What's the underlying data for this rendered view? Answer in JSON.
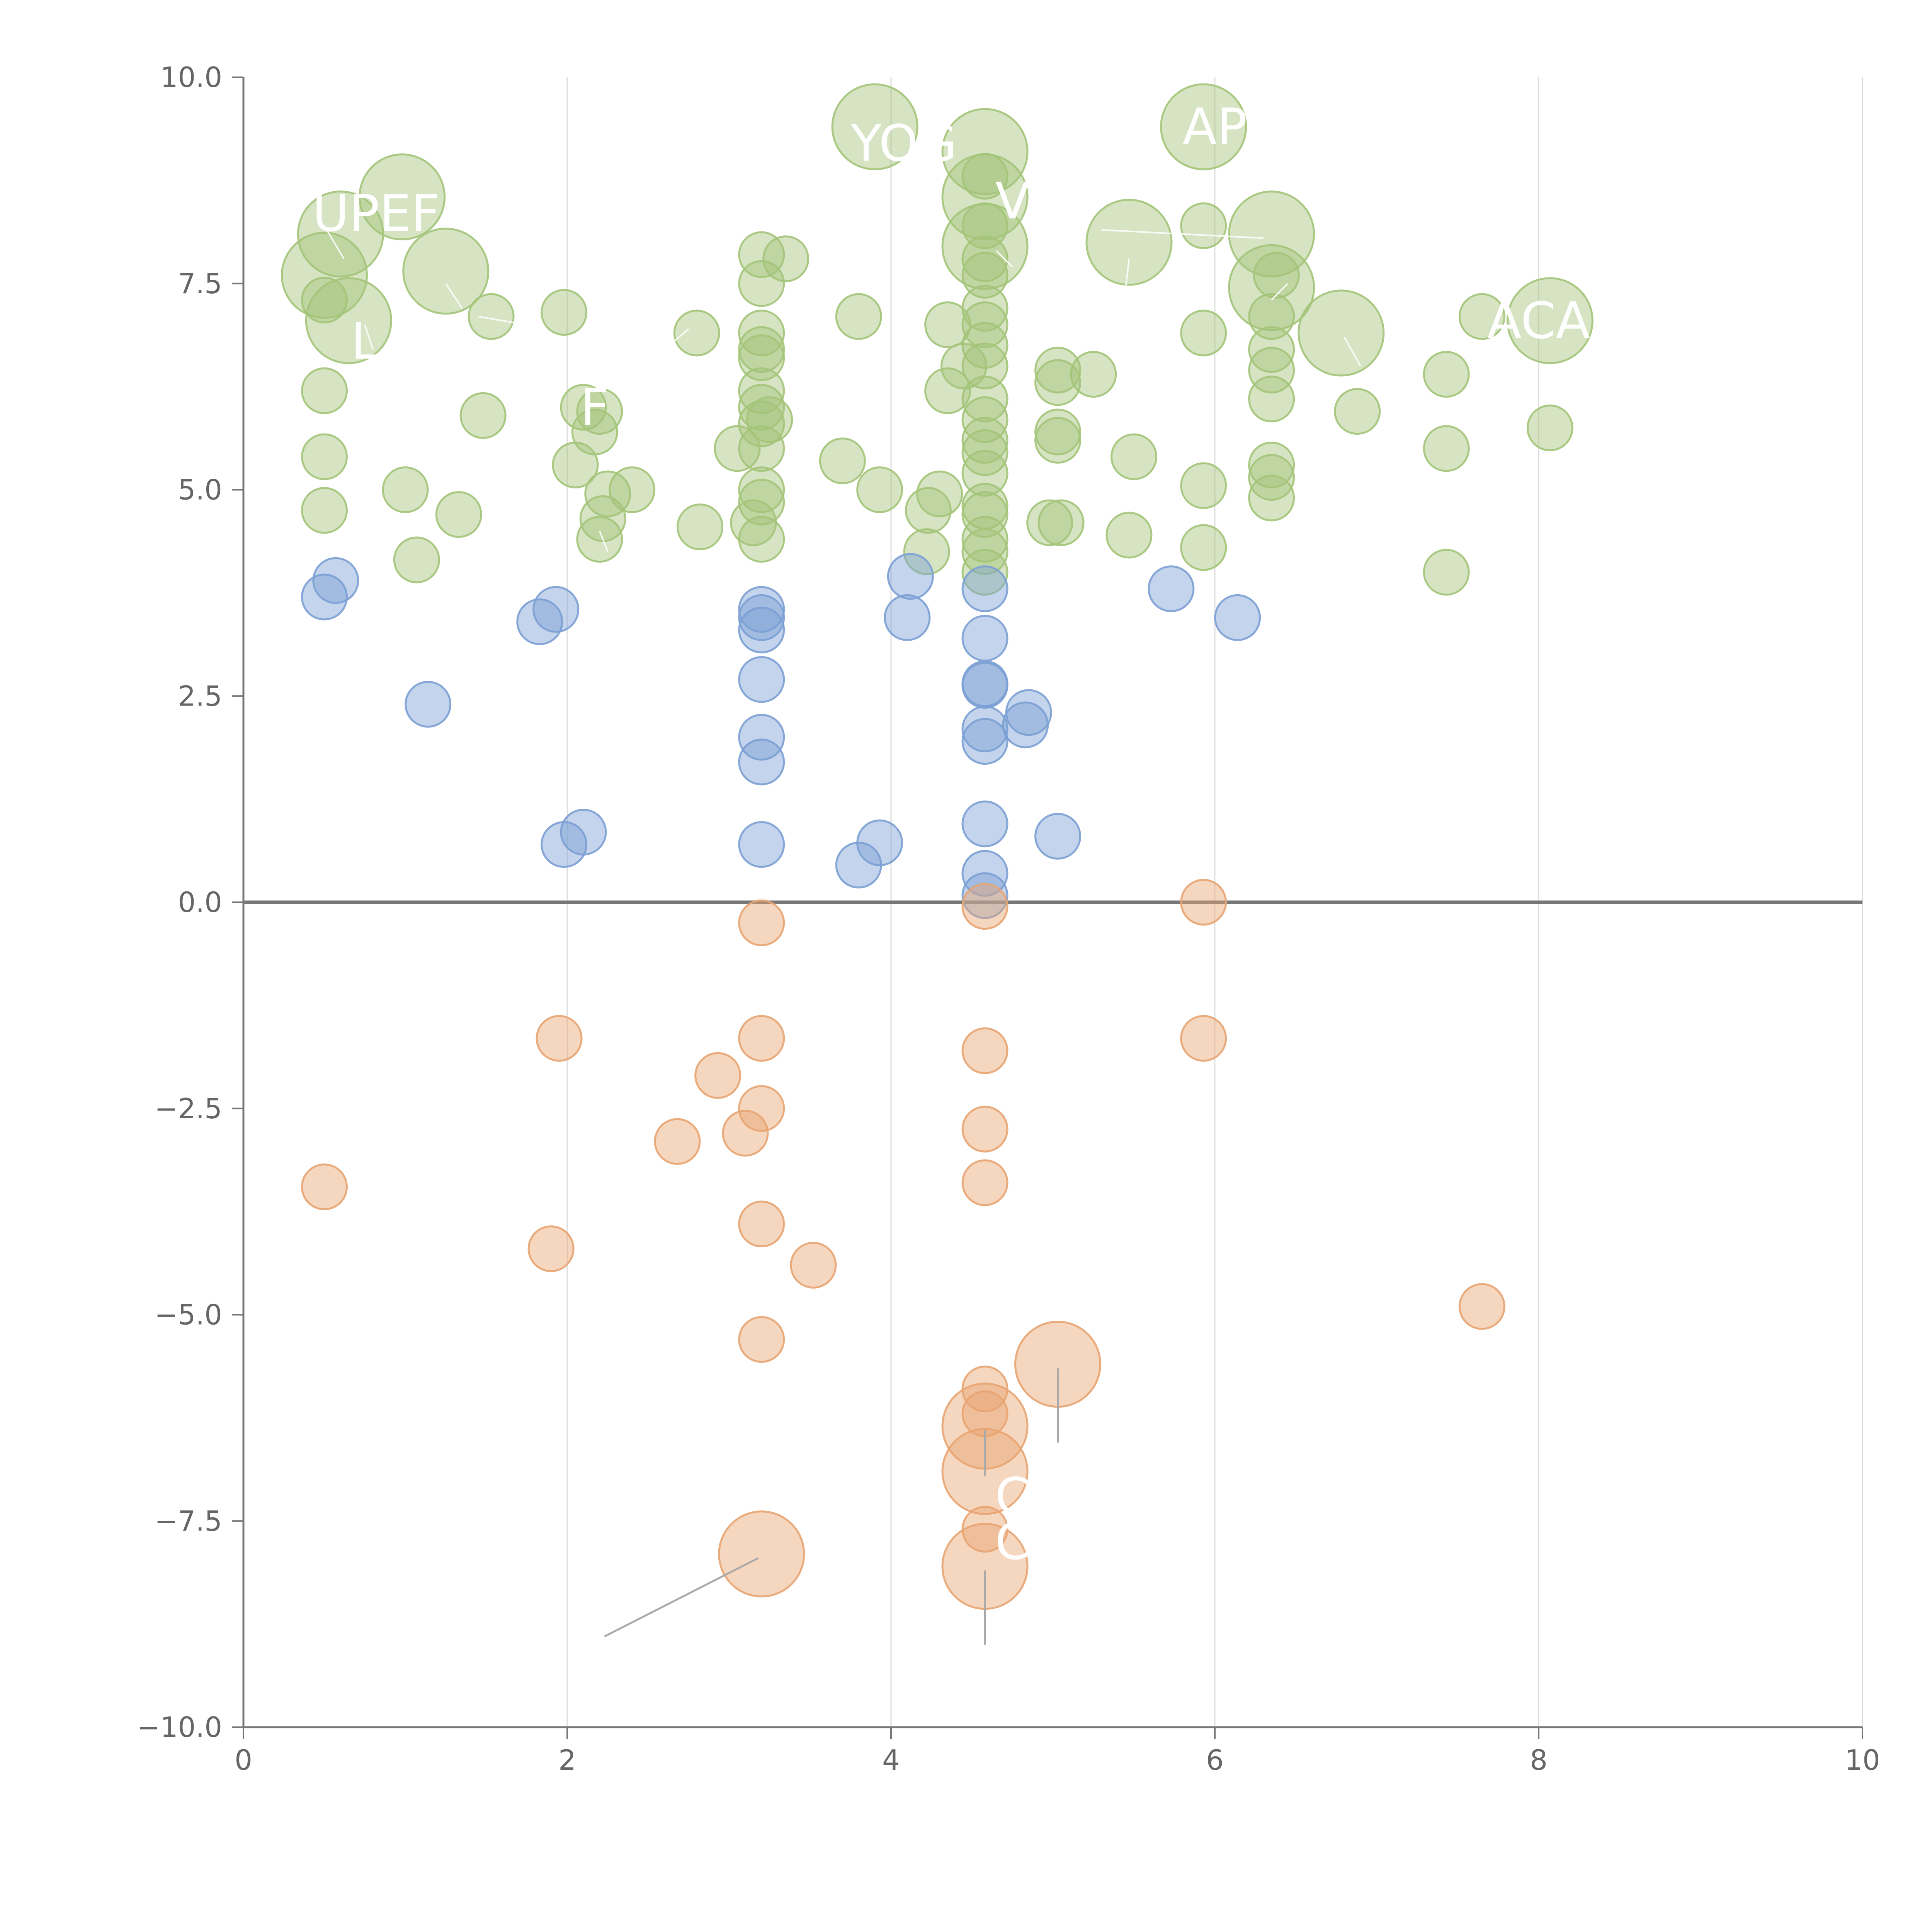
{
  "chart_data": {
    "type": "scatter",
    "title": "",
    "xlabel": "",
    "ylabel": "",
    "xlim": [
      0,
      10
    ],
    "ylim": [
      -10,
      10
    ],
    "x_ticks": [
      "0",
      "2",
      "4",
      "6",
      "8",
      "10"
    ],
    "y_ticks": [
      "−10.0",
      "−7.5",
      "−5.0",
      "−2.5",
      "0.0",
      "2.5",
      "5.0",
      "7.5",
      "10.0"
    ],
    "grid": "vertical",
    "legend": "none",
    "colors": {
      "green": "#a3c479",
      "blue": "#7ba0d4",
      "orange": "#e8a471"
    },
    "groups": [
      {
        "color": "green",
        "points": [
          {
            "x": 0.5,
            "y": 7.6,
            "r": 2
          },
          {
            "x": 0.6,
            "y": 8.1,
            "r": 2
          },
          {
            "x": 0.65,
            "y": 7.05,
            "r": 2
          },
          {
            "x": 0.5,
            "y": 7.3,
            "r": 0
          },
          {
            "x": 0.5,
            "y": 6.2,
            "r": 0
          },
          {
            "x": 0.5,
            "y": 5.4,
            "r": 0
          },
          {
            "x": 0.5,
            "y": 4.75,
            "r": 0
          },
          {
            "x": 0.98,
            "y": 8.55,
            "r": 2
          },
          {
            "x": 1.25,
            "y": 7.65,
            "r": 2
          },
          {
            "x": 1.53,
            "y": 7.1,
            "r": 0
          },
          {
            "x": 1.48,
            "y": 5.9,
            "r": 0
          },
          {
            "x": 1.0,
            "y": 5.0,
            "r": 0
          },
          {
            "x": 1.07,
            "y": 4.15,
            "r": 0
          },
          {
            "x": 1.33,
            "y": 4.7,
            "r": 0
          },
          {
            "x": 1.98,
            "y": 7.15,
            "r": 0
          },
          {
            "x": 2.1,
            "y": 6.0,
            "r": 0
          },
          {
            "x": 2.2,
            "y": 5.95,
            "r": 0
          },
          {
            "x": 2.17,
            "y": 5.7,
            "r": 0
          },
          {
            "x": 2.05,
            "y": 5.3,
            "r": 0
          },
          {
            "x": 2.25,
            "y": 4.95,
            "r": 0
          },
          {
            "x": 2.22,
            "y": 4.65,
            "r": 0
          },
          {
            "x": 2.4,
            "y": 5.0,
            "r": 0
          },
          {
            "x": 2.2,
            "y": 4.4,
            "r": 0
          },
          {
            "x": 2.8,
            "y": 6.9,
            "r": 0
          },
          {
            "x": 2.82,
            "y": 4.55,
            "r": 0
          },
          {
            "x": 3.2,
            "y": 7.85,
            "r": 0
          },
          {
            "x": 3.35,
            "y": 7.8,
            "r": 0
          },
          {
            "x": 3.2,
            "y": 7.5,
            "r": 0
          },
          {
            "x": 3.2,
            "y": 6.9,
            "r": 0
          },
          {
            "x": 3.2,
            "y": 6.7,
            "r": 0
          },
          {
            "x": 3.2,
            "y": 6.6,
            "r": 0
          },
          {
            "x": 3.2,
            "y": 6.2,
            "r": 0
          },
          {
            "x": 3.2,
            "y": 6.0,
            "r": 0
          },
          {
            "x": 3.2,
            "y": 5.8,
            "r": 0
          },
          {
            "x": 3.25,
            "y": 5.85,
            "r": 0
          },
          {
            "x": 3.2,
            "y": 5.5,
            "r": 0
          },
          {
            "x": 3.05,
            "y": 5.5,
            "r": 0
          },
          {
            "x": 3.2,
            "y": 5.0,
            "r": 0
          },
          {
            "x": 3.2,
            "y": 4.85,
            "r": 0
          },
          {
            "x": 3.15,
            "y": 4.6,
            "r": 0
          },
          {
            "x": 3.2,
            "y": 4.4,
            "r": 0
          },
          {
            "x": 3.9,
            "y": 9.4,
            "r": 2
          },
          {
            "x": 3.8,
            "y": 7.1,
            "r": 0
          },
          {
            "x": 3.7,
            "y": 5.35,
            "r": 0
          },
          {
            "x": 3.93,
            "y": 5.0,
            "r": 0
          },
          {
            "x": 4.35,
            "y": 7.0,
            "r": 0
          },
          {
            "x": 4.35,
            "y": 6.2,
            "r": 0
          },
          {
            "x": 4.3,
            "y": 4.95,
            "r": 0
          },
          {
            "x": 4.23,
            "y": 4.75,
            "r": 0
          },
          {
            "x": 4.22,
            "y": 4.25,
            "r": 0
          },
          {
            "x": 4.58,
            "y": 9.1,
            "r": 2
          },
          {
            "x": 4.58,
            "y": 8.55,
            "r": 2
          },
          {
            "x": 4.58,
            "y": 7.95,
            "r": 2
          },
          {
            "x": 4.58,
            "y": 8.8,
            "r": 0
          },
          {
            "x": 4.58,
            "y": 8.2,
            "r": 0
          },
          {
            "x": 4.58,
            "y": 7.8,
            "r": 0
          },
          {
            "x": 4.58,
            "y": 7.6,
            "r": 0
          },
          {
            "x": 4.58,
            "y": 7.2,
            "r": 0
          },
          {
            "x": 4.58,
            "y": 7.0,
            "r": 0
          },
          {
            "x": 4.58,
            "y": 6.75,
            "r": 0
          },
          {
            "x": 4.58,
            "y": 6.5,
            "r": 0
          },
          {
            "x": 4.45,
            "y": 6.5,
            "r": 0
          },
          {
            "x": 4.58,
            "y": 6.1,
            "r": 0
          },
          {
            "x": 4.58,
            "y": 5.85,
            "r": 0
          },
          {
            "x": 4.58,
            "y": 5.6,
            "r": 0
          },
          {
            "x": 4.58,
            "y": 5.45,
            "r": 0
          },
          {
            "x": 4.58,
            "y": 5.2,
            "r": 0
          },
          {
            "x": 4.58,
            "y": 4.8,
            "r": 0
          },
          {
            "x": 4.58,
            "y": 4.7,
            "r": 0
          },
          {
            "x": 4.58,
            "y": 4.4,
            "r": 0
          },
          {
            "x": 4.58,
            "y": 4.25,
            "r": 0
          },
          {
            "x": 4.58,
            "y": 4.0,
            "r": 0
          },
          {
            "x": 5.03,
            "y": 6.45,
            "r": 0
          },
          {
            "x": 5.03,
            "y": 6.3,
            "r": 0
          },
          {
            "x": 5.25,
            "y": 6.4,
            "r": 0
          },
          {
            "x": 5.03,
            "y": 5.7,
            "r": 0
          },
          {
            "x": 5.03,
            "y": 5.6,
            "r": 0
          },
          {
            "x": 4.98,
            "y": 4.6,
            "r": 0
          },
          {
            "x": 5.05,
            "y": 4.6,
            "r": 0
          },
          {
            "x": 5.47,
            "y": 8.0,
            "r": 2
          },
          {
            "x": 5.5,
            "y": 5.4,
            "r": 0
          },
          {
            "x": 5.47,
            "y": 4.45,
            "r": 0
          },
          {
            "x": 5.93,
            "y": 9.4,
            "r": 2
          },
          {
            "x": 5.93,
            "y": 8.2,
            "r": 0
          },
          {
            "x": 5.93,
            "y": 6.9,
            "r": 0
          },
          {
            "x": 5.93,
            "y": 5.05,
            "r": 0
          },
          {
            "x": 5.93,
            "y": 4.3,
            "r": 0
          },
          {
            "x": 6.35,
            "y": 8.1,
            "r": 2
          },
          {
            "x": 6.35,
            "y": 7.45,
            "r": 2
          },
          {
            "x": 6.38,
            "y": 7.6,
            "r": 0
          },
          {
            "x": 6.35,
            "y": 7.1,
            "r": 0
          },
          {
            "x": 6.35,
            "y": 6.7,
            "r": 0
          },
          {
            "x": 6.35,
            "y": 6.45,
            "r": 0
          },
          {
            "x": 6.35,
            "y": 6.1,
            "r": 0
          },
          {
            "x": 6.35,
            "y": 5.3,
            "r": 0
          },
          {
            "x": 6.35,
            "y": 5.15,
            "r": 0
          },
          {
            "x": 6.35,
            "y": 4.9,
            "r": 0
          },
          {
            "x": 6.78,
            "y": 6.9,
            "r": 2
          },
          {
            "x": 6.88,
            "y": 5.95,
            "r": 0
          },
          {
            "x": 7.43,
            "y": 6.4,
            "r": 0
          },
          {
            "x": 7.43,
            "y": 5.5,
            "r": 0
          },
          {
            "x": 7.43,
            "y": 4.0,
            "r": 0
          },
          {
            "x": 7.65,
            "y": 7.1,
            "r": 0
          },
          {
            "x": 8.07,
            "y": 7.05,
            "r": 2
          },
          {
            "x": 8.07,
            "y": 5.75,
            "r": 0
          }
        ]
      },
      {
        "color": "blue",
        "points": [
          {
            "x": 0.5,
            "y": 3.7,
            "r": 0
          },
          {
            "x": 0.57,
            "y": 3.9,
            "r": 0
          },
          {
            "x": 1.14,
            "y": 2.4,
            "r": 0
          },
          {
            "x": 1.83,
            "y": 3.4,
            "r": 0
          },
          {
            "x": 1.93,
            "y": 3.55,
            "r": 0
          },
          {
            "x": 1.98,
            "y": 0.7,
            "r": 0
          },
          {
            "x": 2.1,
            "y": 0.85,
            "r": 0
          },
          {
            "x": 3.2,
            "y": 3.55,
            "r": 0
          },
          {
            "x": 3.2,
            "y": 3.45,
            "r": 0
          },
          {
            "x": 3.2,
            "y": 3.3,
            "r": 0
          },
          {
            "x": 3.2,
            "y": 2.7,
            "r": 0
          },
          {
            "x": 3.2,
            "y": 2.0,
            "r": 0
          },
          {
            "x": 3.2,
            "y": 1.7,
            "r": 0
          },
          {
            "x": 3.2,
            "y": 0.7,
            "r": 0
          },
          {
            "x": 3.8,
            "y": 0.45,
            "r": 0
          },
          {
            "x": 3.93,
            "y": 0.72,
            "r": 0
          },
          {
            "x": 4.1,
            "y": 3.45,
            "r": 0
          },
          {
            "x": 4.12,
            "y": 3.95,
            "r": 0
          },
          {
            "x": 4.58,
            "y": 3.8,
            "r": 0
          },
          {
            "x": 4.58,
            "y": 3.2,
            "r": 0
          },
          {
            "x": 4.58,
            "y": 2.65,
            "r": 0
          },
          {
            "x": 4.58,
            "y": 2.63,
            "r": 0
          },
          {
            "x": 4.58,
            "y": 2.1,
            "r": 0
          },
          {
            "x": 4.58,
            "y": 1.95,
            "r": 0
          },
          {
            "x": 4.58,
            "y": 0.95,
            "r": 0
          },
          {
            "x": 4.58,
            "y": 0.35,
            "r": 0
          },
          {
            "x": 4.58,
            "y": 0.08,
            "r": 0
          },
          {
            "x": 4.83,
            "y": 2.15,
            "r": 0
          },
          {
            "x": 4.85,
            "y": 2.3,
            "r": 0
          },
          {
            "x": 5.03,
            "y": 0.8,
            "r": 0
          },
          {
            "x": 5.73,
            "y": 3.8,
            "r": 0
          },
          {
            "x": 6.14,
            "y": 3.45,
            "r": 0
          }
        ]
      },
      {
        "color": "orange",
        "points": [
          {
            "x": 0.5,
            "y": -3.45,
            "r": 0
          },
          {
            "x": 1.95,
            "y": -1.65,
            "r": 0
          },
          {
            "x": 1.9,
            "y": -4.2,
            "r": 0
          },
          {
            "x": 2.68,
            "y": -2.9,
            "r": 0
          },
          {
            "x": 2.93,
            "y": -2.1,
            "r": 0
          },
          {
            "x": 3.1,
            "y": -2.8,
            "r": 0
          },
          {
            "x": 3.2,
            "y": -0.25,
            "r": 0
          },
          {
            "x": 3.2,
            "y": -1.65,
            "r": 0
          },
          {
            "x": 3.2,
            "y": -2.5,
            "r": 0
          },
          {
            "x": 3.2,
            "y": -3.9,
            "r": 0
          },
          {
            "x": 3.2,
            "y": -5.3,
            "r": 0
          },
          {
            "x": 3.2,
            "y": -7.9,
            "r": 2
          },
          {
            "x": 3.52,
            "y": -4.4,
            "r": 0
          },
          {
            "x": 4.58,
            "y": -0.05,
            "r": 0
          },
          {
            "x": 4.58,
            "y": -1.8,
            "r": 0
          },
          {
            "x": 4.58,
            "y": -2.75,
            "r": 0
          },
          {
            "x": 4.58,
            "y": -3.4,
            "r": 0
          },
          {
            "x": 4.58,
            "y": -5.9,
            "r": 0
          },
          {
            "x": 4.58,
            "y": -6.2,
            "r": 0
          },
          {
            "x": 4.58,
            "y": -6.35,
            "r": 2
          },
          {
            "x": 4.58,
            "y": -6.9,
            "r": 2
          },
          {
            "x": 4.58,
            "y": -7.6,
            "r": 0
          },
          {
            "x": 4.58,
            "y": -8.05,
            "r": 2
          },
          {
            "x": 5.03,
            "y": -5.6,
            "r": 2
          },
          {
            "x": 5.93,
            "y": 0.0,
            "r": 0
          },
          {
            "x": 5.93,
            "y": -1.65,
            "r": 0
          },
          {
            "x": 7.65,
            "y": -4.9,
            "r": 0
          }
        ]
      }
    ],
    "point_labels": [
      {
        "text": "UPEF",
        "x": 0.82,
        "y": 8.35
      },
      {
        "text": "YOG",
        "x": 4.08,
        "y": 9.2
      },
      {
        "text": "AP",
        "x": 6.0,
        "y": 9.4
      },
      {
        "text": "ACA",
        "x": 8.0,
        "y": 7.05
      },
      {
        "text": "V",
        "x": 4.75,
        "y": 8.5
      },
      {
        "text": "L",
        "x": 0.75,
        "y": 6.8
      },
      {
        "text": "F",
        "x": 2.17,
        "y": 6.0
      },
      {
        "text": "C",
        "x": 4.75,
        "y": -7.2
      },
      {
        "text": "C",
        "x": 4.75,
        "y": -7.75
      }
    ]
  }
}
